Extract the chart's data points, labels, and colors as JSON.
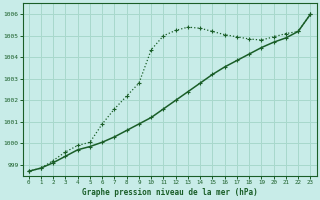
{
  "title": "Graphe pression niveau de la mer (hPa)",
  "bg_color": "#c8ece8",
  "grid_color": "#a8d8cc",
  "line_color": "#1a5e28",
  "xlim": [
    -0.5,
    23.5
  ],
  "ylim": [
    998.5,
    1006.5
  ],
  "yticks": [
    999,
    1000,
    1001,
    1002,
    1003,
    1004,
    1005,
    1006
  ],
  "xticks": [
    0,
    1,
    2,
    3,
    4,
    5,
    6,
    7,
    8,
    9,
    10,
    11,
    12,
    13,
    14,
    15,
    16,
    17,
    18,
    19,
    20,
    21,
    22,
    23
  ],
  "line_straight_x": [
    0,
    1,
    2,
    3,
    4,
    5,
    6,
    7,
    8,
    9,
    10,
    11,
    12,
    13,
    14,
    15,
    16,
    17,
    18,
    19,
    20,
    21,
    22,
    23
  ],
  "line_straight_y": [
    998.7,
    998.85,
    999.1,
    999.4,
    999.7,
    999.85,
    1000.05,
    1000.3,
    1000.6,
    1000.9,
    1001.2,
    1001.6,
    1002.0,
    1002.4,
    1002.8,
    1003.2,
    1003.55,
    1003.85,
    1004.15,
    1004.45,
    1004.7,
    1004.9,
    1005.2,
    1006.0
  ],
  "line_curved_x": [
    0,
    1,
    2,
    3,
    4,
    5,
    6,
    7,
    8,
    9,
    10,
    11,
    12,
    13,
    14,
    15,
    16,
    17,
    18,
    19,
    20,
    21,
    22,
    23
  ],
  "line_curved_y": [
    998.7,
    998.85,
    999.2,
    999.6,
    999.9,
    1000.05,
    1000.9,
    1001.6,
    1002.2,
    1002.8,
    1004.35,
    1005.0,
    1005.25,
    1005.4,
    1005.35,
    1005.2,
    1005.05,
    1004.95,
    1004.85,
    1004.8,
    1004.95,
    1005.1,
    1005.2,
    1006.0
  ]
}
